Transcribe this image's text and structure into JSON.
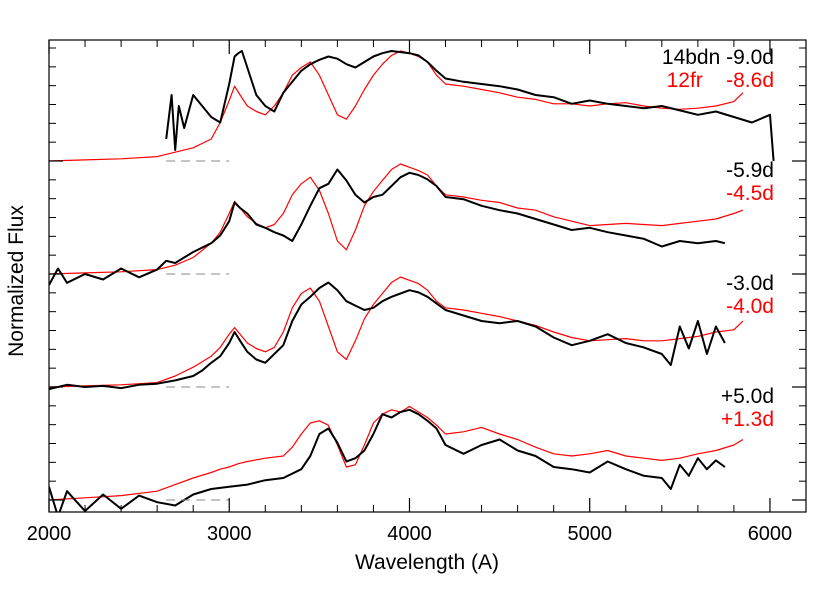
{
  "chart_data": {
    "type": "line",
    "title": "",
    "xlabel": "Wavelength (A)",
    "ylabel": "Normalized Flux",
    "xlim": [
      2000,
      6200
    ],
    "x_ticks": [
      2000,
      3000,
      4000,
      5000,
      6000
    ],
    "x_tick_labels": [
      "2000",
      "3000",
      "4000",
      "5000",
      "6000"
    ],
    "y_tick_labels_shown": false,
    "grid": false,
    "colors": {
      "14bdn": "#000000",
      "12fr": "#ff0000",
      "axis": "#000000",
      "baseline": "#888888"
    },
    "objects": [
      "14bdn",
      "12fr"
    ],
    "epochs": [
      {
        "offset": 3,
        "labels": [
          {
            "text": "14bdn -9.0d",
            "color": "#000000"
          },
          {
            "text": "12fr    -8.6d",
            "color": "#ff0000"
          }
        ],
        "series": [
          {
            "object": "14bdn",
            "color": "#000000",
            "x": [
              2650,
              2680,
              2700,
              2720,
              2750,
              2800,
              2850,
              2900,
              2950,
              3000,
              3030,
              3050,
              3070,
              3100,
              3150,
              3200,
              3250,
              3300,
              3350,
              3400,
              3450,
              3500,
              3550,
              3600,
              3650,
              3700,
              3750,
              3800,
              3850,
              3900,
              3950,
              4000,
              4050,
              4100,
              4150,
              4200,
              4300,
              4400,
              4500,
              4600,
              4700,
              4800,
              4900,
              5000,
              5100,
              5200,
              5300,
              5400,
              5500,
              5600,
              5700,
              5800,
              5900,
              6000,
              6020
            ],
            "y": [
              0.2,
              0.6,
              0.1,
              0.5,
              0.3,
              0.6,
              0.5,
              0.4,
              0.35,
              0.7,
              0.95,
              0.98,
              1.0,
              0.85,
              0.6,
              0.5,
              0.45,
              0.62,
              0.72,
              0.82,
              0.88,
              0.92,
              0.95,
              0.93,
              0.88,
              0.85,
              0.9,
              0.95,
              0.98,
              1.0,
              0.99,
              0.98,
              0.96,
              0.9,
              0.82,
              0.75,
              0.72,
              0.7,
              0.68,
              0.65,
              0.6,
              0.58,
              0.52,
              0.55,
              0.52,
              0.5,
              0.48,
              0.5,
              0.46,
              0.42,
              0.45,
              0.4,
              0.35,
              0.42,
              0.0
            ]
          },
          {
            "object": "12fr",
            "color": "#ff0000",
            "x": [
              2000,
              2200,
              2400,
              2600,
              2700,
              2800,
              2900,
              2950,
              3000,
              3030,
              3060,
              3100,
              3150,
              3200,
              3250,
              3300,
              3350,
              3400,
              3450,
              3500,
              3550,
              3600,
              3650,
              3700,
              3750,
              3800,
              3850,
              3900,
              3950,
              4000,
              4050,
              4100,
              4150,
              4200,
              4300,
              4400,
              4500,
              4600,
              4700,
              4800,
              4900,
              5000,
              5100,
              5200,
              5300,
              5400,
              5500,
              5600,
              5700,
              5800,
              5850
            ],
            "y": [
              0.0,
              0.01,
              0.02,
              0.04,
              0.08,
              0.12,
              0.2,
              0.35,
              0.55,
              0.68,
              0.6,
              0.5,
              0.45,
              0.42,
              0.5,
              0.62,
              0.78,
              0.85,
              0.9,
              0.78,
              0.6,
              0.42,
              0.38,
              0.5,
              0.65,
              0.78,
              0.88,
              0.96,
              1.0,
              0.98,
              0.95,
              0.9,
              0.78,
              0.7,
              0.68,
              0.65,
              0.62,
              0.58,
              0.56,
              0.52,
              0.52,
              0.5,
              0.52,
              0.53,
              0.5,
              0.48,
              0.47,
              0.48,
              0.5,
              0.54,
              0.62
            ]
          }
        ]
      },
      {
        "offset": 2,
        "labels": [
          {
            "text": "-5.9d",
            "color": "#000000"
          },
          {
            "text": "-4.5d",
            "color": "#ff0000"
          }
        ],
        "series": [
          {
            "object": "14bdn",
            "color": "#000000",
            "x": [
              2000,
              2050,
              2100,
              2200,
              2300,
              2400,
              2500,
              2600,
              2650,
              2700,
              2800,
              2900,
              2950,
              3000,
              3030,
              3060,
              3100,
              3150,
              3200,
              3250,
              3300,
              3350,
              3400,
              3450,
              3500,
              3550,
              3600,
              3650,
              3700,
              3750,
              3800,
              3850,
              3900,
              3950,
              4000,
              4050,
              4100,
              4150,
              4200,
              4300,
              4400,
              4500,
              4600,
              4700,
              4800,
              4900,
              5000,
              5100,
              5200,
              5300,
              5400,
              5500,
              5600,
              5700,
              5750
            ],
            "y": [
              -0.1,
              0.05,
              -0.08,
              0.0,
              -0.05,
              0.05,
              -0.03,
              0.04,
              0.12,
              0.1,
              0.2,
              0.28,
              0.35,
              0.48,
              0.65,
              0.6,
              0.55,
              0.45,
              0.42,
              0.38,
              0.35,
              0.3,
              0.45,
              0.62,
              0.78,
              0.82,
              0.95,
              0.85,
              0.72,
              0.65,
              0.7,
              0.72,
              0.8,
              0.88,
              0.92,
              0.9,
              0.86,
              0.8,
              0.7,
              0.68,
              0.62,
              0.58,
              0.55,
              0.5,
              0.45,
              0.4,
              0.42,
              0.38,
              0.35,
              0.32,
              0.25,
              0.3,
              0.28,
              0.3,
              0.28
            ]
          },
          {
            "object": "12fr",
            "color": "#ff0000",
            "x": [
              2000,
              2200,
              2400,
              2600,
              2700,
              2800,
              2900,
              2950,
              3000,
              3030,
              3060,
              3100,
              3150,
              3200,
              3250,
              3300,
              3350,
              3400,
              3450,
              3500,
              3550,
              3600,
              3650,
              3700,
              3750,
              3800,
              3850,
              3900,
              3950,
              4000,
              4050,
              4100,
              4150,
              4200,
              4300,
              4400,
              4500,
              4600,
              4700,
              4800,
              4900,
              5000,
              5100,
              5200,
              5300,
              5400,
              5500,
              5600,
              5700,
              5800,
              5850
            ],
            "y": [
              0.0,
              0.01,
              0.02,
              0.04,
              0.08,
              0.15,
              0.28,
              0.38,
              0.55,
              0.66,
              0.6,
              0.52,
              0.46,
              0.42,
              0.45,
              0.55,
              0.72,
              0.82,
              0.88,
              0.76,
              0.55,
              0.3,
              0.22,
              0.4,
              0.62,
              0.75,
              0.85,
              0.95,
              1.0,
              0.97,
              0.94,
              0.9,
              0.8,
              0.72,
              0.7,
              0.67,
              0.65,
              0.6,
              0.58,
              0.52,
              0.48,
              0.44,
              0.45,
              0.46,
              0.45,
              0.44,
              0.46,
              0.48,
              0.5,
              0.55,
              0.58
            ]
          }
        ]
      },
      {
        "offset": 1,
        "labels": [
          {
            "text": "-3.0d",
            "color": "#000000"
          },
          {
            "text": "-4.0d",
            "color": "#ff0000"
          }
        ],
        "series": [
          {
            "object": "14bdn",
            "color": "#000000",
            "x": [
              2000,
              2100,
              2200,
              2300,
              2400,
              2500,
              2600,
              2700,
              2800,
              2850,
              2900,
              2950,
              3000,
              3030,
              3060,
              3100,
              3150,
              3200,
              3250,
              3300,
              3350,
              3400,
              3450,
              3500,
              3550,
              3600,
              3650,
              3700,
              3750,
              3800,
              3850,
              3900,
              3950,
              4000,
              4050,
              4100,
              4150,
              4200,
              4300,
              4400,
              4500,
              4600,
              4700,
              4800,
              4900,
              5000,
              5100,
              5200,
              5300,
              5400,
              5450,
              5500,
              5550,
              5600,
              5650,
              5700,
              5750
            ],
            "y": [
              -0.02,
              0.02,
              0.0,
              0.01,
              -0.01,
              0.02,
              0.03,
              0.06,
              0.1,
              0.15,
              0.22,
              0.28,
              0.4,
              0.5,
              0.42,
              0.32,
              0.25,
              0.22,
              0.3,
              0.38,
              0.6,
              0.75,
              0.82,
              0.9,
              0.95,
              0.88,
              0.78,
              0.74,
              0.7,
              0.72,
              0.78,
              0.82,
              0.85,
              0.88,
              0.86,
              0.82,
              0.76,
              0.7,
              0.65,
              0.6,
              0.58,
              0.6,
              0.55,
              0.45,
              0.38,
              0.42,
              0.48,
              0.4,
              0.36,
              0.3,
              0.2,
              0.55,
              0.35,
              0.6,
              0.3,
              0.55,
              0.4
            ]
          },
          {
            "object": "12fr",
            "color": "#ff0000",
            "x": [
              2000,
              2200,
              2400,
              2600,
              2700,
              2800,
              2900,
              2950,
              3000,
              3030,
              3060,
              3100,
              3150,
              3200,
              3250,
              3300,
              3350,
              3400,
              3450,
              3500,
              3550,
              3600,
              3650,
              3700,
              3750,
              3800,
              3850,
              3900,
              3950,
              4000,
              4050,
              4100,
              4150,
              4200,
              4300,
              4400,
              4500,
              4600,
              4700,
              4800,
              4900,
              5000,
              5100,
              5200,
              5300,
              5400,
              5500,
              5600,
              5700,
              5800,
              5850
            ],
            "y": [
              0.0,
              0.01,
              0.02,
              0.04,
              0.1,
              0.18,
              0.28,
              0.36,
              0.48,
              0.54,
              0.48,
              0.4,
              0.35,
              0.32,
              0.36,
              0.5,
              0.72,
              0.85,
              0.9,
              0.78,
              0.55,
              0.32,
              0.25,
              0.42,
              0.62,
              0.75,
              0.85,
              0.95,
              1.0,
              0.97,
              0.94,
              0.88,
              0.78,
              0.72,
              0.7,
              0.67,
              0.64,
              0.6,
              0.56,
              0.5,
              0.45,
              0.42,
              0.43,
              0.44,
              0.42,
              0.42,
              0.44,
              0.46,
              0.5,
              0.52,
              0.6
            ]
          }
        ]
      },
      {
        "offset": 0,
        "labels": [
          {
            "text": "+5.0d",
            "color": "#000000"
          },
          {
            "text": "+1.3d",
            "color": "#ff0000"
          }
        ],
        "series": [
          {
            "object": "14bdn",
            "color": "#000000",
            "x": [
              2000,
              2050,
              2100,
              2200,
              2300,
              2400,
              2500,
              2600,
              2700,
              2800,
              2900,
              3000,
              3100,
              3200,
              3300,
              3400,
              3450,
              3500,
              3550,
              3600,
              3650,
              3700,
              3750,
              3800,
              3850,
              3900,
              3950,
              4000,
              4050,
              4100,
              4150,
              4200,
              4300,
              4400,
              4500,
              4600,
              4700,
              4800,
              4900,
              5000,
              5100,
              5200,
              5300,
              5400,
              5450,
              5500,
              5550,
              5600,
              5650,
              5700,
              5750
            ],
            "y": [
              0.12,
              -0.15,
              0.08,
              -0.1,
              0.05,
              -0.08,
              0.04,
              -0.02,
              -0.05,
              0.05,
              0.1,
              0.12,
              0.14,
              0.18,
              0.2,
              0.28,
              0.4,
              0.6,
              0.65,
              0.52,
              0.35,
              0.38,
              0.45,
              0.6,
              0.78,
              0.75,
              0.8,
              0.82,
              0.78,
              0.72,
              0.65,
              0.5,
              0.42,
              0.5,
              0.55,
              0.45,
              0.4,
              0.3,
              0.28,
              0.25,
              0.35,
              0.28,
              0.22,
              0.2,
              0.1,
              0.32,
              0.22,
              0.38,
              0.28,
              0.36,
              0.3
            ]
          },
          {
            "object": "12fr",
            "color": "#ff0000",
            "x": [
              2000,
              2200,
              2400,
              2600,
              2700,
              2800,
              2900,
              2950,
              3000,
              3050,
              3100,
              3200,
              3300,
              3350,
              3400,
              3450,
              3500,
              3550,
              3600,
              3650,
              3700,
              3750,
              3800,
              3850,
              3900,
              3950,
              4000,
              4050,
              4100,
              4150,
              4200,
              4300,
              4400,
              4500,
              4600,
              4700,
              4800,
              4900,
              5000,
              5100,
              5200,
              5300,
              5400,
              5500,
              5600,
              5700,
              5800,
              5850
            ],
            "y": [
              0.0,
              0.02,
              0.04,
              0.08,
              0.14,
              0.2,
              0.25,
              0.28,
              0.3,
              0.33,
              0.35,
              0.38,
              0.4,
              0.48,
              0.6,
              0.7,
              0.72,
              0.68,
              0.5,
              0.3,
              0.32,
              0.5,
              0.7,
              0.78,
              0.82,
              0.8,
              0.85,
              0.8,
              0.75,
              0.68,
              0.6,
              0.62,
              0.66,
              0.6,
              0.55,
              0.48,
              0.42,
              0.4,
              0.42,
              0.45,
              0.4,
              0.38,
              0.36,
              0.38,
              0.42,
              0.45,
              0.5,
              0.55
            ]
          }
        ]
      }
    ]
  }
}
